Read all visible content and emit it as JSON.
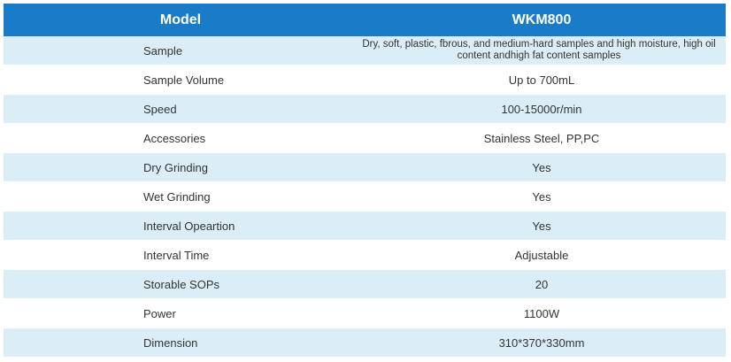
{
  "header": {
    "col1": "Model",
    "col2": "WKM800"
  },
  "rows": [
    {
      "label": "Sample",
      "value": "Dry, soft, plastic, fbrous, and medium-hard samples and high moisture, high oil content andhigh fat content samples"
    },
    {
      "label": "Sample Volume",
      "value": "Up to 700mL"
    },
    {
      "label": "Speed",
      "value": "100-15000r/min"
    },
    {
      "label": "Accessories",
      "value": "Stainless Steel, PP,PC"
    },
    {
      "label": "Dry Grinding",
      "value": "Yes"
    },
    {
      "label": "Wet Grinding",
      "value": "Yes"
    },
    {
      "label": "Interval Opeartion",
      "value": "Yes"
    },
    {
      "label": "Interval Time",
      "value": "Adjustable"
    },
    {
      "label": "Storable SOPs",
      "value": "20"
    },
    {
      "label": "Power",
      "value": "1100W"
    },
    {
      "label": "Dimension",
      "value": "310*370*330mm"
    }
  ],
  "colors": {
    "header_bg": "#1a7bc8",
    "header_text": "#ffffff",
    "row_tint": "#dbeef7",
    "row_plain": "#ffffff",
    "body_text": "#333333"
  }
}
